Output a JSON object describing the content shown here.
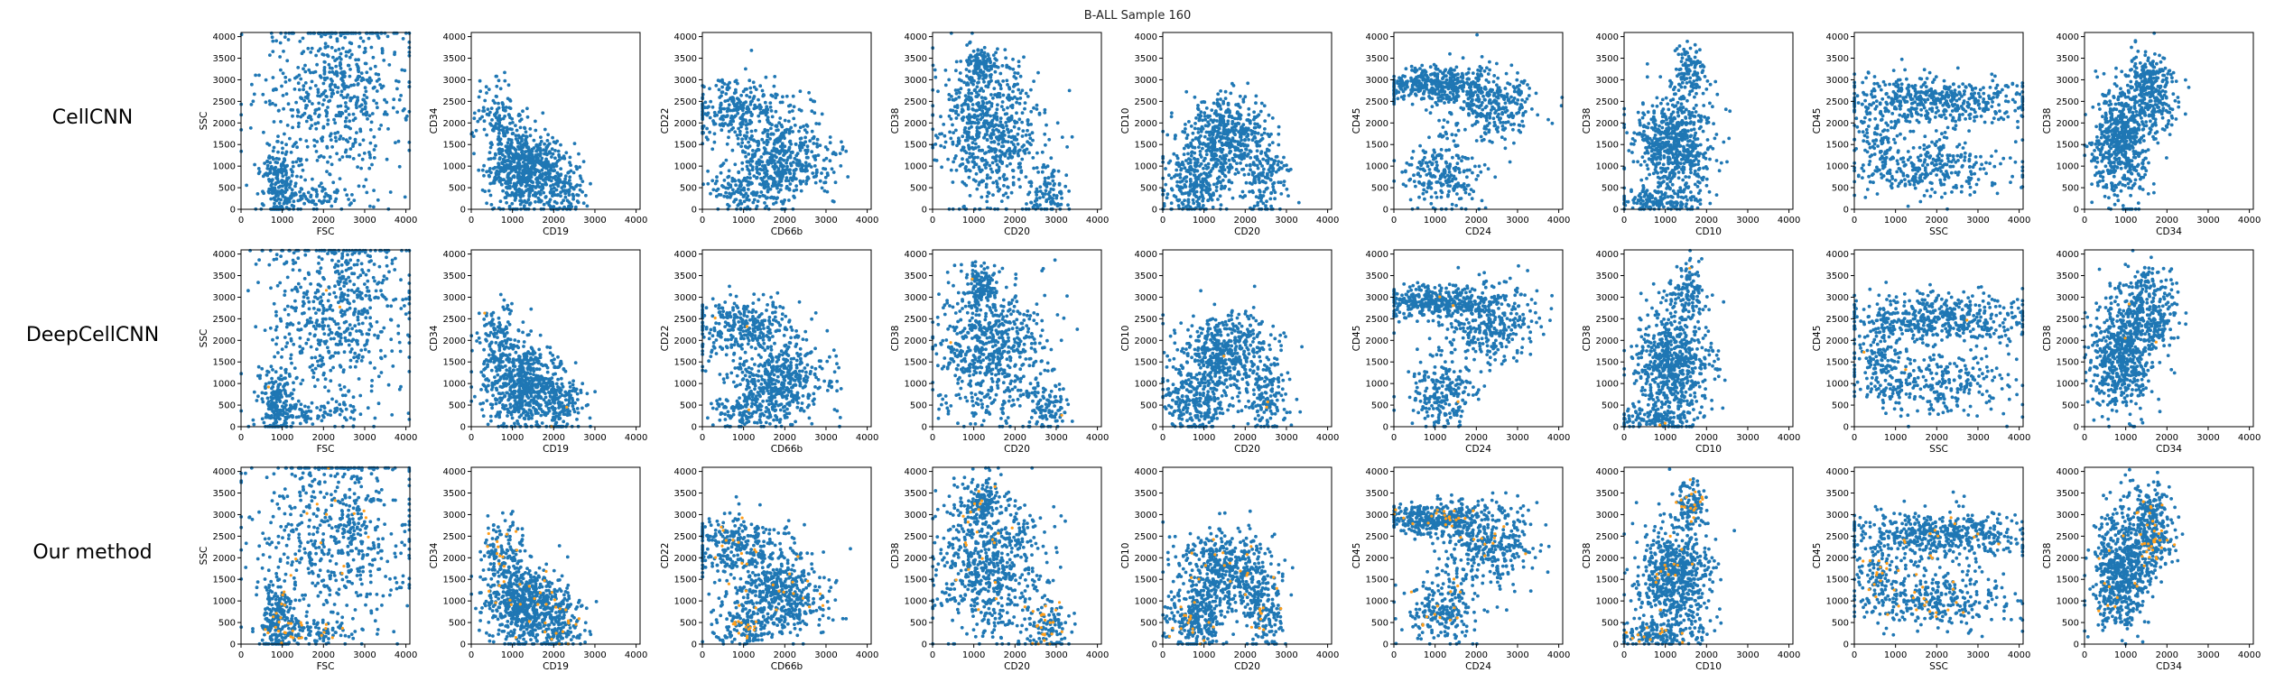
{
  "figure": {
    "title": "B-ALL Sample 160",
    "row_labels": [
      "CellCNN",
      "DeepCellCNN",
      "Our method"
    ]
  },
  "colors": {
    "points": "#1f77b4",
    "highlight": "#ff9f1c"
  },
  "chart_data": {
    "type": "scatter",
    "grid": false,
    "xlim": [
      0,
      4096
    ],
    "ylim": [
      0,
      4096
    ],
    "xticks": [
      0,
      1000,
      2000,
      3000,
      4000
    ],
    "yticks": [
      0,
      500,
      1000,
      1500,
      2000,
      2500,
      3000,
      3500,
      4000
    ],
    "panels": [
      {
        "xlabel": "FSC",
        "ylabel": "SSC"
      },
      {
        "xlabel": "CD19",
        "ylabel": "CD34"
      },
      {
        "xlabel": "CD66b",
        "ylabel": "CD22"
      },
      {
        "xlabel": "CD20",
        "ylabel": "CD38"
      },
      {
        "xlabel": "CD20",
        "ylabel": "CD10"
      },
      {
        "xlabel": "CD24",
        "ylabel": "CD45"
      },
      {
        "xlabel": "CD10",
        "ylabel": "CD38"
      },
      {
        "xlabel": "SSC",
        "ylabel": "CD45"
      },
      {
        "xlabel": "CD34",
        "ylabel": "CD38"
      }
    ],
    "series": [
      {
        "name": "CellCNN"
      },
      {
        "name": "DeepCellCNN"
      },
      {
        "name": "Our method"
      }
    ]
  }
}
